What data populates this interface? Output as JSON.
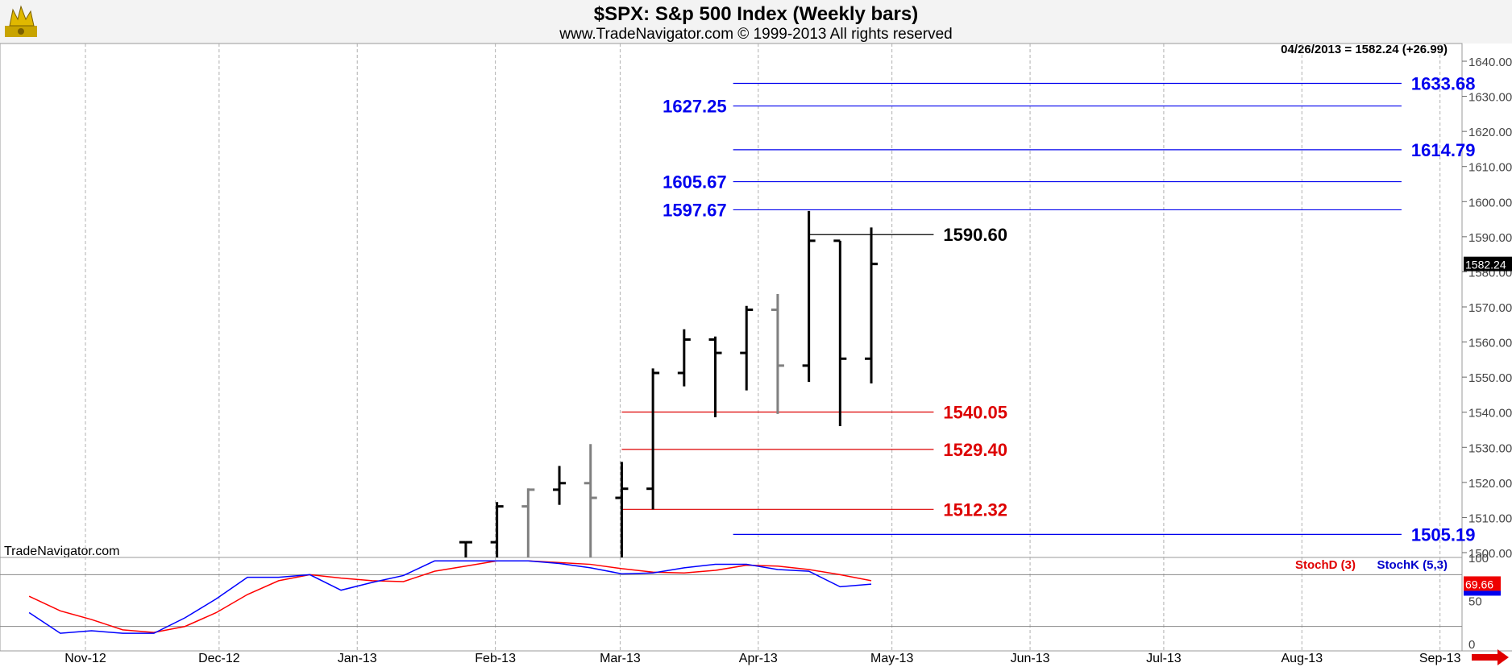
{
  "header": {
    "title": "$SPX:  S&p 500 Index  (Weekly bars)",
    "subtitle": "www.TradeNavigator.com © 1999-2013 All rights reserved"
  },
  "last_info": "04/26/2013 = 1582.24 (+26.99)",
  "brand": "TradeNavigator.com",
  "price_marker": "1582.24",
  "stoch_marker": "69.66",
  "stoch_labels": {
    "d": "StochD (3)",
    "k": "StochK (5,3)"
  },
  "colors": {
    "up": "#000000",
    "down": "#808080",
    "blue_level": "#0000ee",
    "red_level": "#dd0000",
    "stochK": "#0000ff",
    "stochD": "#ff0000",
    "grid": "#b0b0b0"
  },
  "chart_data": {
    "type": "ohlc",
    "x_ticks": [
      "Nov-12",
      "Dec-12",
      "Jan-13",
      "Feb-13",
      "Mar-13",
      "Apr-13",
      "May-13",
      "Jun-13",
      "Jul-13",
      "Aug-13",
      "Sep-13"
    ],
    "price_axis": {
      "ylim": [
        1500,
        1640
      ],
      "ticks": [
        "1640.00",
        "1630.00",
        "1620.00",
        "1610.00",
        "1600.00",
        "1590.00",
        "1580.00",
        "1570.00",
        "1560.00",
        "1550.00",
        "1540.00",
        "1530.00",
        "1520.00",
        "1510.00",
        "1500.00"
      ]
    },
    "bars": [
      {
        "date": "2013-01-25",
        "open": 1502.96,
        "high": 1503,
        "low": 1496,
        "close": 1502.96,
        "dir": "up"
      },
      {
        "date": "2013-02-01",
        "open": 1502.96,
        "high": 1514.41,
        "low": 1490,
        "close": 1513.17,
        "dir": "up"
      },
      {
        "date": "2013-02-08",
        "open": 1513.17,
        "high": 1518.31,
        "low": 1495,
        "close": 1517.93,
        "dir": "down"
      },
      {
        "date": "2013-02-15",
        "open": 1517.93,
        "high": 1524.69,
        "low": 1513.61,
        "close": 1519.79,
        "dir": "up"
      },
      {
        "date": "2013-02-22",
        "open": 1519.79,
        "high": 1530.94,
        "low": 1485.01,
        "close": 1515.6,
        "dir": "down"
      },
      {
        "date": "2013-03-01",
        "open": 1515.6,
        "high": 1525.84,
        "low": 1485.01,
        "close": 1518.2,
        "dir": "up"
      },
      {
        "date": "2013-03-08",
        "open": 1518.2,
        "high": 1552.48,
        "low": 1512.32,
        "close": 1551.18,
        "dir": "up"
      },
      {
        "date": "2013-03-15",
        "open": 1551.18,
        "high": 1563.62,
        "low": 1547.36,
        "close": 1560.7,
        "dir": "up"
      },
      {
        "date": "2013-03-22",
        "open": 1560.7,
        "high": 1561.56,
        "low": 1538.57,
        "close": 1556.89,
        "dir": "up"
      },
      {
        "date": "2013-03-29",
        "open": 1556.89,
        "high": 1570.28,
        "low": 1546.22,
        "close": 1569.19,
        "dir": "up"
      },
      {
        "date": "2013-04-05",
        "open": 1569.19,
        "high": 1573.66,
        "low": 1539.5,
        "close": 1553.28,
        "dir": "down"
      },
      {
        "date": "2013-04-12",
        "open": 1553.28,
        "high": 1597.35,
        "low": 1548.63,
        "close": 1588.85,
        "dir": "up"
      },
      {
        "date": "2013-04-19",
        "open": 1588.85,
        "high": 1588.85,
        "low": 1536.03,
        "close": 1555.25,
        "dir": "up"
      },
      {
        "date": "2013-04-26",
        "open": 1555.25,
        "high": 1592.64,
        "low": 1548.19,
        "close": 1582.24,
        "dir": "up"
      }
    ],
    "levels": [
      {
        "value": 1633.68,
        "label": "1633.68",
        "color": "blue",
        "label_side": "right",
        "start": "2013-03-26",
        "end": "2013-08-23"
      },
      {
        "value": 1627.25,
        "label": "1627.25",
        "color": "blue",
        "label_side": "left",
        "start": "2013-03-26",
        "end": "2013-08-23"
      },
      {
        "value": 1614.79,
        "label": "1614.79",
        "color": "blue",
        "label_side": "right",
        "start": "2013-03-26",
        "end": "2013-08-23"
      },
      {
        "value": 1605.67,
        "label": "1605.67",
        "color": "blue",
        "label_side": "left",
        "start": "2013-03-26",
        "end": "2013-08-23"
      },
      {
        "value": 1597.67,
        "label": "1597.67",
        "color": "blue",
        "label_side": "left",
        "start": "2013-03-26",
        "end": "2013-08-23"
      },
      {
        "value": 1590.6,
        "label": "1590.60",
        "color": "black",
        "label_side": "right",
        "start": "2013-04-12",
        "end": "2013-05-10"
      },
      {
        "value": 1540.05,
        "label": "1540.05",
        "color": "red",
        "label_side": "right",
        "start": "2013-03-01",
        "end": "2013-05-10"
      },
      {
        "value": 1529.4,
        "label": "1529.40",
        "color": "red",
        "label_side": "right",
        "start": "2013-03-01",
        "end": "2013-05-10"
      },
      {
        "value": 1512.32,
        "label": "1512.32",
        "color": "red",
        "label_side": "right",
        "start": "2013-03-01",
        "end": "2013-05-10"
      },
      {
        "value": 1505.19,
        "label": "1505.19",
        "color": "blue",
        "label_side": "right",
        "start": "2013-03-26",
        "end": "2013-08-23"
      }
    ],
    "stochastic": {
      "ylim": [
        0,
        100
      ],
      "ticks": [
        "100",
        "50",
        "0"
      ],
      "reference_lines": [
        80,
        20
      ],
      "dates": [
        "2012-10-19",
        "2012-10-26",
        "2012-11-02",
        "2012-11-09",
        "2012-11-16",
        "2012-11-23",
        "2012-11-30",
        "2012-12-07",
        "2012-12-14",
        "2012-12-21",
        "2012-12-28",
        "2013-01-04",
        "2013-01-11",
        "2013-01-18",
        "2013-01-25",
        "2013-02-01",
        "2013-02-08",
        "2013-02-15",
        "2013-02-22",
        "2013-03-01",
        "2013-03-08",
        "2013-03-15",
        "2013-03-22",
        "2013-03-29",
        "2013-04-05",
        "2013-04-12",
        "2013-04-19",
        "2013-04-26"
      ],
      "stochK": [
        36,
        12,
        15,
        12,
        12,
        30,
        52,
        77,
        77,
        80,
        62,
        71,
        79,
        96,
        96,
        96,
        96,
        93,
        88,
        81,
        82,
        88,
        92,
        92,
        86,
        84,
        66,
        69
      ],
      "stochD": [
        55,
        38,
        28,
        16,
        13,
        20,
        36,
        57,
        73,
        80,
        76,
        73,
        72,
        84,
        90,
        96,
        96,
        94,
        92,
        87,
        83,
        82,
        85,
        91,
        90,
        86,
        80,
        73
      ]
    }
  }
}
